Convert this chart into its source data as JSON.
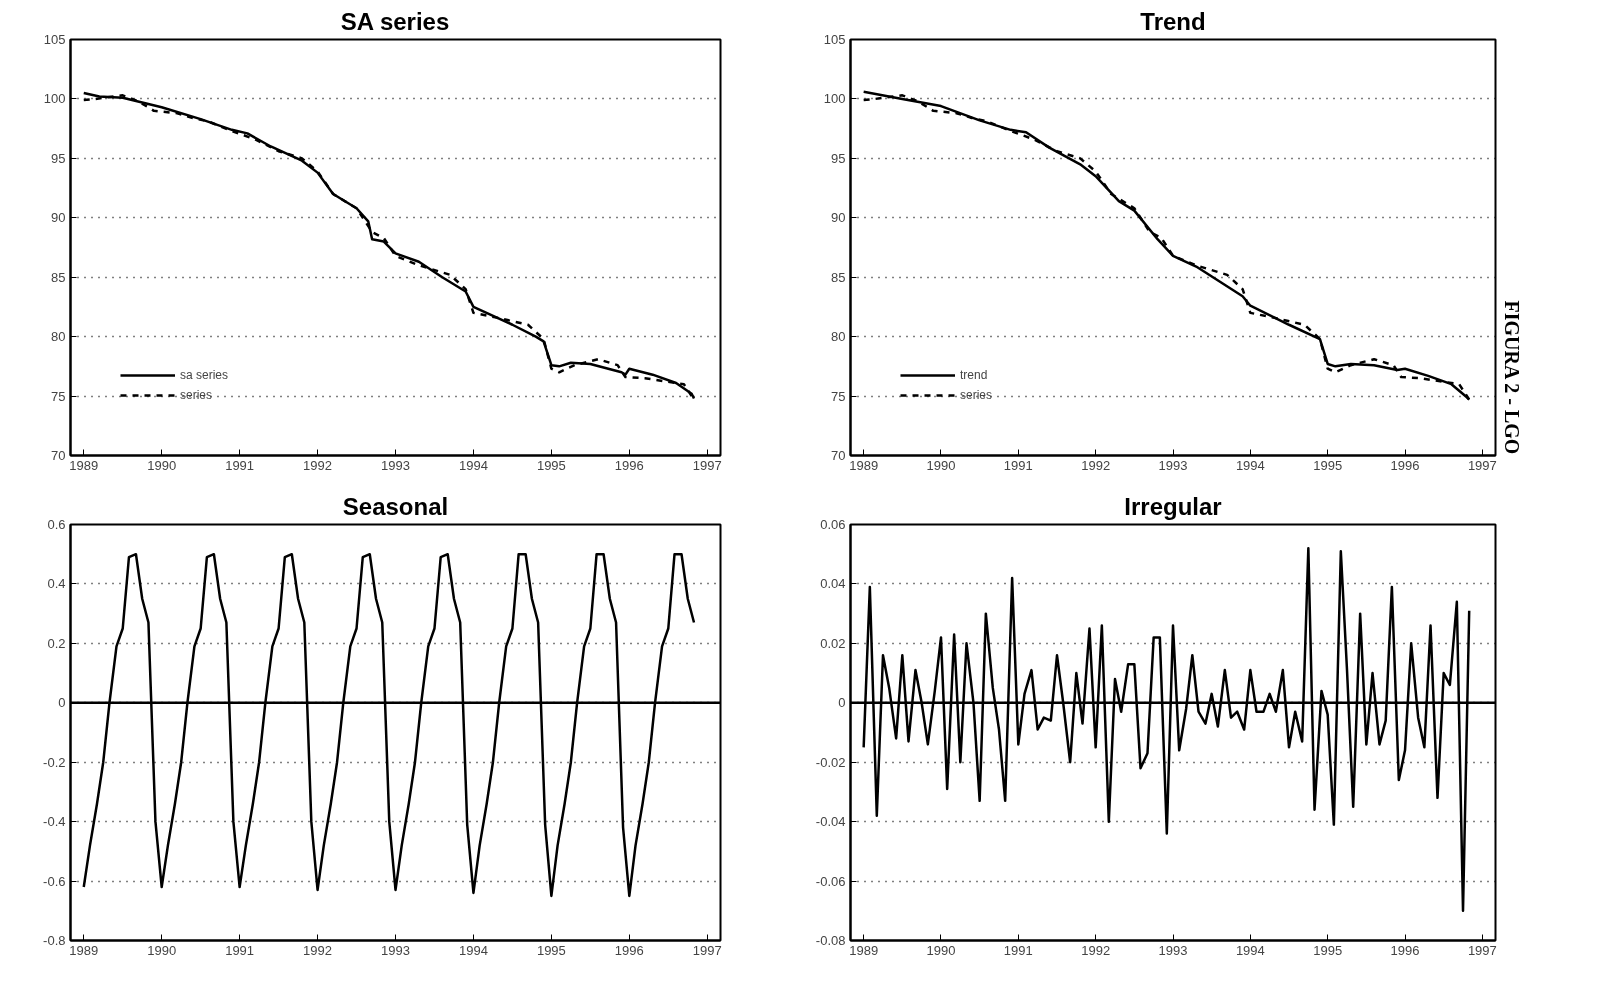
{
  "chart_data": [
    {
      "type": "line",
      "title": "SA series",
      "xlim": [
        1988.83,
        1997.17
      ],
      "xticks": [
        1989,
        1990,
        1991,
        1992,
        1993,
        1994,
        1995,
        1996,
        1997
      ],
      "ylim": [
        70,
        105
      ],
      "yticks": [
        70,
        75,
        80,
        85,
        90,
        95,
        100,
        105
      ],
      "grid": "y",
      "legend": "bottom left",
      "series": [
        {
          "name": "sa series",
          "color": "#000000",
          "line_style": "solid",
          "x": [
            1989.0,
            1989.2,
            1989.5,
            1990.0,
            1990.5,
            1990.9,
            1991.1,
            1991.4,
            1991.8,
            1992.0,
            1992.2,
            1992.5,
            1992.65,
            1992.7,
            1992.85,
            1993.0,
            1993.3,
            1993.6,
            1993.9,
            1994.0,
            1994.5,
            1994.8,
            1994.9,
            1995.0,
            1995.1,
            1995.25,
            1995.5,
            1995.9,
            1995.95,
            1996.0,
            1996.3,
            1996.6,
            1996.8,
            1996.83
          ],
          "values": [
            100.5,
            100.2,
            100.1,
            99.3,
            98.3,
            97.4,
            97.1,
            96.0,
            94.8,
            93.8,
            92.0,
            90.8,
            89.7,
            88.2,
            88.0,
            87.0,
            86.3,
            85.0,
            83.8,
            82.5,
            81.0,
            80.0,
            79.6,
            77.6,
            77.5,
            77.8,
            77.7,
            77.0,
            76.8,
            77.3,
            76.8,
            76.1,
            75.2,
            74.8
          ]
        },
        {
          "name": "series",
          "color": "#000000",
          "line_style": "dashed",
          "x": [
            1989.0,
            1989.15,
            1989.5,
            1989.7,
            1989.9,
            1990.2,
            1990.4,
            1990.6,
            1990.9,
            1991.2,
            1991.5,
            1991.8,
            1992.0,
            1992.2,
            1992.5,
            1992.7,
            1992.85,
            1993.0,
            1993.3,
            1993.7,
            1993.9,
            1994.0,
            1994.3,
            1994.7,
            1994.9,
            1995.0,
            1995.1,
            1995.3,
            1995.6,
            1995.85,
            1995.95,
            1996.2,
            1996.5,
            1996.7,
            1996.83
          ],
          "values": [
            99.9,
            100.0,
            100.3,
            99.8,
            99.0,
            98.8,
            98.4,
            98.1,
            97.3,
            96.6,
            95.6,
            95.0,
            93.9,
            92.0,
            90.8,
            88.8,
            88.3,
            86.8,
            86.0,
            85.2,
            84.0,
            82.0,
            81.6,
            81.0,
            79.8,
            77.3,
            77.0,
            77.6,
            78.1,
            77.6,
            76.6,
            76.5,
            76.2,
            76.0,
            74.7
          ]
        }
      ]
    },
    {
      "type": "line",
      "title": "Trend",
      "xlim": [
        1988.83,
        1997.17
      ],
      "xticks": [
        1989,
        1990,
        1991,
        1992,
        1993,
        1994,
        1995,
        1996,
        1997
      ],
      "ylim": [
        70,
        105
      ],
      "yticks": [
        70,
        75,
        80,
        85,
        90,
        95,
        100,
        105
      ],
      "grid": "y",
      "legend": "bottom left",
      "annotations": [
        "FIGURA 2 - LGO"
      ],
      "series": [
        {
          "name": "trend",
          "color": "#000000",
          "line_style": "solid",
          "x": [
            1989.0,
            1989.5,
            1990.0,
            1990.5,
            1990.9,
            1991.1,
            1991.4,
            1991.8,
            1992.0,
            1992.3,
            1992.5,
            1992.8,
            1993.0,
            1993.3,
            1993.9,
            1994.0,
            1994.5,
            1994.9,
            1995.0,
            1995.1,
            1995.3,
            1995.6,
            1995.9,
            1996.0,
            1996.3,
            1996.6,
            1996.8,
            1996.83
          ],
          "values": [
            100.6,
            100.0,
            99.4,
            98.2,
            97.4,
            97.2,
            95.9,
            94.5,
            93.5,
            91.4,
            90.6,
            88.2,
            86.8,
            85.9,
            83.4,
            82.6,
            81.0,
            79.8,
            77.7,
            77.5,
            77.7,
            77.6,
            77.2,
            77.3,
            76.7,
            76.0,
            74.9,
            74.7
          ]
        },
        {
          "name": "series",
          "color": "#000000",
          "line_style": "dashed",
          "x": [
            1989.0,
            1989.15,
            1989.5,
            1989.7,
            1989.9,
            1990.2,
            1990.4,
            1990.6,
            1990.9,
            1991.2,
            1991.5,
            1991.8,
            1992.0,
            1992.2,
            1992.5,
            1992.7,
            1992.85,
            1993.0,
            1993.3,
            1993.7,
            1993.9,
            1994.0,
            1994.3,
            1994.7,
            1994.9,
            1995.0,
            1995.1,
            1995.3,
            1995.6,
            1995.85,
            1995.95,
            1996.2,
            1996.5,
            1996.7,
            1996.83
          ],
          "values": [
            99.9,
            100.0,
            100.3,
            99.8,
            99.0,
            98.8,
            98.4,
            98.1,
            97.3,
            96.6,
            95.6,
            95.0,
            93.9,
            92.0,
            90.8,
            88.8,
            88.3,
            86.8,
            86.0,
            85.2,
            84.0,
            82.0,
            81.6,
            81.0,
            79.8,
            77.3,
            77.0,
            77.6,
            78.1,
            77.6,
            76.6,
            76.5,
            76.2,
            76.0,
            74.7
          ]
        }
      ]
    },
    {
      "type": "line",
      "title": "Seasonal",
      "xlim": [
        1988.83,
        1997.17
      ],
      "xticks": [
        1989,
        1990,
        1991,
        1992,
        1993,
        1994,
        1995,
        1996,
        1997
      ],
      "ylim": [
        -0.8,
        0.6
      ],
      "yticks": [
        -0.8,
        -0.6,
        -0.4,
        -0.2,
        0,
        0.2,
        0.4,
        0.6
      ],
      "grid": "y",
      "ref_lines": [
        {
          "axis": "y",
          "value": 0,
          "color": "#000000",
          "line_style": "solid"
        }
      ],
      "x": [
        1989.0,
        1989.08,
        1989.17,
        1989.25,
        1989.33,
        1989.42,
        1989.5,
        1989.58,
        1989.67,
        1989.75,
        1989.83,
        1989.92,
        1990.0,
        1990.08,
        1990.17,
        1990.25,
        1990.33,
        1990.42,
        1990.5,
        1990.58,
        1990.67,
        1990.75,
        1990.83,
        1990.92,
        1991.0,
        1991.08,
        1991.17,
        1991.25,
        1991.33,
        1991.42,
        1991.5,
        1991.58,
        1991.67,
        1991.75,
        1991.83,
        1991.92,
        1992.0,
        1992.08,
        1992.17,
        1992.25,
        1992.33,
        1992.42,
        1992.5,
        1992.58,
        1992.67,
        1992.75,
        1992.83,
        1992.92,
        1993.0,
        1993.08,
        1993.17,
        1993.25,
        1993.33,
        1993.42,
        1993.5,
        1993.58,
        1993.67,
        1993.75,
        1993.83,
        1993.92,
        1994.0,
        1994.08,
        1994.17,
        1994.25,
        1994.33,
        1994.42,
        1994.5,
        1994.58,
        1994.67,
        1994.75,
        1994.83,
        1994.92,
        1995.0,
        1995.08,
        1995.17,
        1995.25,
        1995.33,
        1995.42,
        1995.5,
        1995.58,
        1995.67,
        1995.75,
        1995.83,
        1995.92,
        1996.0,
        1996.08,
        1996.17,
        1996.25,
        1996.33,
        1996.42,
        1996.5,
        1996.58,
        1996.67,
        1996.75,
        1996.83
      ],
      "series": [
        {
          "color": "#000000",
          "line_style": "solid",
          "values": [
            -0.62,
            -0.48,
            -0.34,
            -0.2,
            0.0,
            0.19,
            0.25,
            0.49,
            0.5,
            0.35,
            0.27,
            -0.4,
            -0.62,
            -0.48,
            -0.34,
            -0.2,
            0.0,
            0.19,
            0.25,
            0.49,
            0.5,
            0.35,
            0.27,
            -0.4,
            -0.62,
            -0.48,
            -0.34,
            -0.2,
            0.0,
            0.19,
            0.25,
            0.49,
            0.5,
            0.35,
            0.27,
            -0.4,
            -0.63,
            -0.48,
            -0.34,
            -0.2,
            0.0,
            0.19,
            0.25,
            0.49,
            0.5,
            0.35,
            0.27,
            -0.4,
            -0.63,
            -0.48,
            -0.34,
            -0.2,
            0.0,
            0.19,
            0.25,
            0.49,
            0.5,
            0.35,
            0.27,
            -0.41,
            -0.64,
            -0.48,
            -0.34,
            -0.2,
            0.0,
            0.19,
            0.25,
            0.5,
            0.5,
            0.35,
            0.27,
            -0.41,
            -0.65,
            -0.48,
            -0.34,
            -0.2,
            0.0,
            0.19,
            0.25,
            0.5,
            0.5,
            0.35,
            0.27,
            -0.42,
            -0.65,
            -0.48,
            -0.34,
            -0.2,
            0.0,
            0.19,
            0.25,
            0.5,
            0.5,
            0.35,
            0.27
          ]
        }
      ]
    },
    {
      "type": "line",
      "title": "Irregular",
      "xlim": [
        1988.83,
        1997.17
      ],
      "xticks": [
        1989,
        1990,
        1991,
        1992,
        1993,
        1994,
        1995,
        1996,
        1997
      ],
      "ylim": [
        -0.08,
        0.06
      ],
      "yticks": [
        -0.08,
        -0.06,
        -0.04,
        -0.02,
        0,
        0.02,
        0.04,
        0.06
      ],
      "grid": "y",
      "ref_lines": [
        {
          "axis": "y",
          "value": 0,
          "color": "#000000",
          "line_style": "solid"
        }
      ],
      "x": [
        1989.0,
        1989.08,
        1989.17,
        1989.25,
        1989.33,
        1989.42,
        1989.5,
        1989.58,
        1989.67,
        1989.75,
        1989.83,
        1989.92,
        1990.0,
        1990.08,
        1990.17,
        1990.25,
        1990.33,
        1990.42,
        1990.5,
        1990.58,
        1990.67,
        1990.75,
        1990.83,
        1990.92,
        1991.0,
        1991.08,
        1991.17,
        1991.25,
        1991.33,
        1991.42,
        1991.5,
        1991.58,
        1991.67,
        1991.75,
        1991.83,
        1991.92,
        1992.0,
        1992.08,
        1992.17,
        1992.25,
        1992.33,
        1992.42,
        1992.5,
        1992.58,
        1992.67,
        1992.75,
        1992.83,
        1992.92,
        1993.0,
        1993.08,
        1993.17,
        1993.25,
        1993.33,
        1993.42,
        1993.5,
        1993.58,
        1993.67,
        1993.75,
        1993.83,
        1993.92,
        1994.0,
        1994.08,
        1994.17,
        1994.25,
        1994.33,
        1994.42,
        1994.5,
        1994.58,
        1994.67,
        1994.75,
        1994.83,
        1994.92,
        1995.0,
        1995.08,
        1995.17,
        1995.25,
        1995.33,
        1995.42,
        1995.5,
        1995.58,
        1995.67,
        1995.75,
        1995.83,
        1995.92,
        1996.0,
        1996.08,
        1996.17,
        1996.25,
        1996.33,
        1996.42,
        1996.5,
        1996.58,
        1996.67,
        1996.75,
        1996.83
      ],
      "series": [
        {
          "color": "#000000",
          "line_style": "solid",
          "values": [
            -0.015,
            0.039,
            -0.038,
            0.016,
            0.005,
            -0.012,
            0.016,
            -0.013,
            0.011,
            0.0,
            -0.014,
            0.004,
            0.022,
            -0.029,
            0.023,
            -0.02,
            0.02,
            0.0,
            -0.033,
            0.03,
            0.005,
            -0.009,
            -0.033,
            0.042,
            -0.014,
            0.003,
            0.011,
            -0.009,
            -0.005,
            -0.006,
            0.016,
            0.0,
            -0.02,
            0.01,
            -0.007,
            0.025,
            -0.015,
            0.026,
            -0.04,
            0.008,
            -0.003,
            0.013,
            0.013,
            -0.022,
            -0.017,
            0.022,
            0.022,
            -0.044,
            0.026,
            -0.016,
            -0.002,
            0.016,
            -0.003,
            -0.007,
            0.003,
            -0.008,
            0.011,
            -0.005,
            -0.003,
            -0.009,
            0.011,
            -0.003,
            -0.003,
            0.003,
            -0.003,
            0.011,
            -0.015,
            -0.003,
            -0.013,
            0.052,
            -0.036,
            0.004,
            -0.004,
            -0.041,
            0.051,
            0.011,
            -0.035,
            0.03,
            -0.014,
            0.01,
            -0.014,
            -0.006,
            0.039,
            -0.026,
            -0.016,
            0.02,
            -0.005,
            -0.015,
            0.026,
            -0.032,
            0.01,
            0.006,
            0.034,
            -0.07,
            0.031
          ]
        }
      ]
    }
  ]
}
